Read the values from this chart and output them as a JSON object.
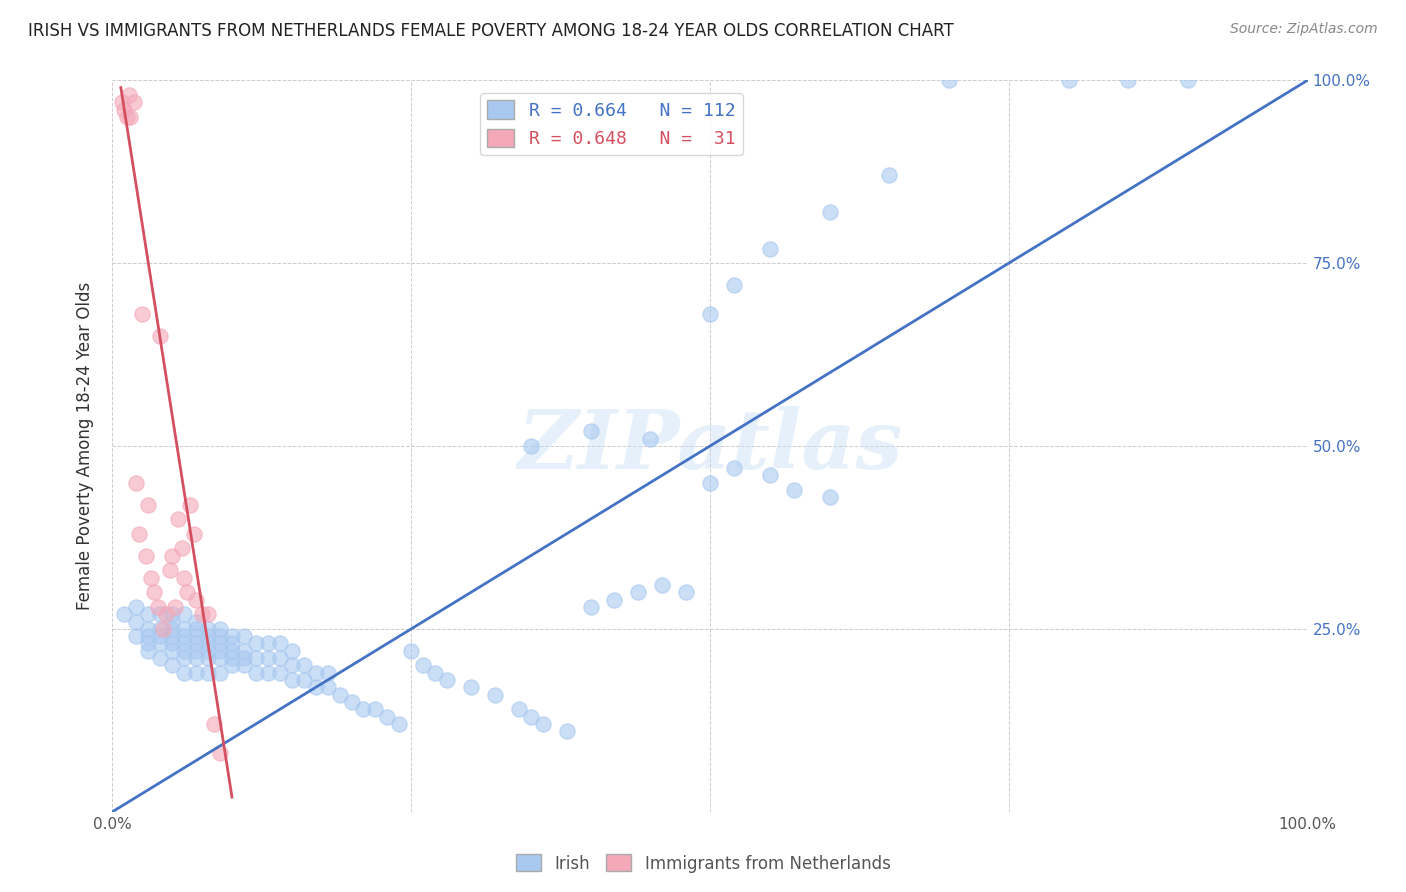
{
  "title": "IRISH VS IMMIGRANTS FROM NETHERLANDS FEMALE POVERTY AMONG 18-24 YEAR OLDS CORRELATION CHART",
  "source": "Source: ZipAtlas.com",
  "ylabel": "Female Poverty Among 18-24 Year Olds",
  "xlim": [
    0,
    1
  ],
  "ylim": [
    0,
    1
  ],
  "watermark": "ZIPatlas",
  "blue_color": "#a8c8f0",
  "pink_color": "#f4a8b8",
  "blue_line_color": "#4472c4",
  "pink_line_color": "#d45060",
  "right_axis_color": "#4472c4",
  "legend_R_blue": "0.664",
  "legend_N_blue": "112",
  "legend_R_pink": "0.648",
  "legend_N_pink": " 31",
  "blue_scatter_x": [
    0.01,
    0.02,
    0.02,
    0.02,
    0.03,
    0.03,
    0.03,
    0.03,
    0.03,
    0.04,
    0.04,
    0.04,
    0.04,
    0.04,
    0.05,
    0.05,
    0.05,
    0.05,
    0.05,
    0.05,
    0.05,
    0.06,
    0.06,
    0.06,
    0.06,
    0.06,
    0.06,
    0.06,
    0.07,
    0.07,
    0.07,
    0.07,
    0.07,
    0.07,
    0.07,
    0.08,
    0.08,
    0.08,
    0.08,
    0.08,
    0.08,
    0.09,
    0.09,
    0.09,
    0.09,
    0.09,
    0.09,
    0.1,
    0.1,
    0.1,
    0.1,
    0.1,
    0.11,
    0.11,
    0.11,
    0.11,
    0.12,
    0.12,
    0.12,
    0.13,
    0.13,
    0.13,
    0.14,
    0.14,
    0.14,
    0.15,
    0.15,
    0.15,
    0.16,
    0.16,
    0.17,
    0.17,
    0.18,
    0.18,
    0.19,
    0.2,
    0.21,
    0.22,
    0.23,
    0.24,
    0.25,
    0.26,
    0.27,
    0.28,
    0.3,
    0.32,
    0.34,
    0.35,
    0.36,
    0.38,
    0.4,
    0.42,
    0.44,
    0.46,
    0.48,
    0.5,
    0.52,
    0.55,
    0.57,
    0.6,
    0.35,
    0.4,
    0.45,
    0.5,
    0.52,
    0.55,
    0.6,
    0.65,
    0.7,
    0.8,
    0.85,
    0.9
  ],
  "blue_scatter_y": [
    0.27,
    0.24,
    0.26,
    0.28,
    0.23,
    0.25,
    0.27,
    0.22,
    0.24,
    0.21,
    0.23,
    0.25,
    0.27,
    0.24,
    0.2,
    0.22,
    0.24,
    0.26,
    0.23,
    0.25,
    0.27,
    0.19,
    0.21,
    0.23,
    0.25,
    0.22,
    0.24,
    0.27,
    0.19,
    0.21,
    0.23,
    0.25,
    0.22,
    0.24,
    0.26,
    0.19,
    0.21,
    0.23,
    0.25,
    0.22,
    0.24,
    0.19,
    0.21,
    0.23,
    0.25,
    0.22,
    0.24,
    0.2,
    0.22,
    0.24,
    0.21,
    0.23,
    0.2,
    0.22,
    0.24,
    0.21,
    0.19,
    0.21,
    0.23,
    0.19,
    0.21,
    0.23,
    0.19,
    0.21,
    0.23,
    0.18,
    0.2,
    0.22,
    0.18,
    0.2,
    0.17,
    0.19,
    0.17,
    0.19,
    0.16,
    0.15,
    0.14,
    0.14,
    0.13,
    0.12,
    0.22,
    0.2,
    0.19,
    0.18,
    0.17,
    0.16,
    0.14,
    0.13,
    0.12,
    0.11,
    0.28,
    0.29,
    0.3,
    0.31,
    0.3,
    0.45,
    0.47,
    0.46,
    0.44,
    0.43,
    0.5,
    0.52,
    0.51,
    0.68,
    0.72,
    0.77,
    0.82,
    0.87,
    1.0,
    1.0,
    1.0,
    1.0
  ],
  "pink_scatter_x": [
    0.008,
    0.01,
    0.012,
    0.014,
    0.015,
    0.018,
    0.02,
    0.022,
    0.025,
    0.028,
    0.03,
    0.032,
    0.035,
    0.038,
    0.04,
    0.042,
    0.045,
    0.048,
    0.05,
    0.052,
    0.055,
    0.058,
    0.06,
    0.062,
    0.065,
    0.068,
    0.07,
    0.075,
    0.08,
    0.085,
    0.09
  ],
  "pink_scatter_y": [
    0.97,
    0.96,
    0.95,
    0.98,
    0.95,
    0.97,
    0.45,
    0.38,
    0.68,
    0.35,
    0.42,
    0.32,
    0.3,
    0.28,
    0.65,
    0.25,
    0.27,
    0.33,
    0.35,
    0.28,
    0.4,
    0.36,
    0.32,
    0.3,
    0.42,
    0.38,
    0.29,
    0.27,
    0.27,
    0.12,
    0.08
  ],
  "blue_trend_x": [
    0.0,
    1.0
  ],
  "blue_trend_y": [
    0.0,
    1.0
  ],
  "pink_trend_x": [
    0.007,
    0.1
  ],
  "pink_trend_y": [
    0.99,
    0.02
  ]
}
